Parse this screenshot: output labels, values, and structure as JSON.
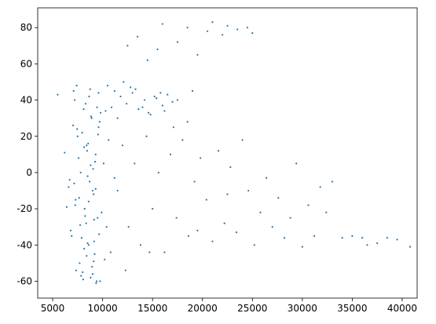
{
  "chart_data": {
    "type": "scatter",
    "color": "#1f77b4",
    "xlim": [
      3500,
      41500
    ],
    "ylim": [
      -69.3,
      90.9
    ],
    "xticks": [
      5000,
      10000,
      15000,
      20000,
      25000,
      30000,
      35000,
      40000
    ],
    "yticks": [
      -60,
      -40,
      -20,
      0,
      20,
      40,
      60,
      80
    ],
    "x": [
      7200,
      8100,
      8900,
      9600,
      7500,
      8400,
      9300,
      10100,
      7800,
      8700,
      9000,
      7300,
      8200,
      9500,
      10400,
      6900,
      8600,
      9200,
      7700,
      8000,
      8800,
      9400,
      7100,
      8300,
      9700,
      10600,
      7600,
      8500,
      9100,
      9900,
      6800,
      8150,
      8950,
      9350,
      7400,
      8650,
      9800,
      7950,
      8450,
      9050,
      6600,
      7250,
      8350,
      9150,
      10200,
      7850,
      8750,
      9450,
      7050,
      8550,
      9250,
      6700,
      7650,
      8250,
      9650,
      10800,
      7350,
      8050,
      8850,
      9550,
      6200,
      5500,
      7150,
      8600,
      9150,
      7900,
      8400,
      9000,
      9600,
      10300,
      7450,
      8150,
      8800,
      9300,
      6400,
      7750,
      8500,
      9100,
      9750,
      11200,
      10500,
      11200,
      11800,
      12400,
      13000,
      13600,
      14200,
      14800,
      15400,
      16000,
      16500,
      17000,
      11500,
      12800,
      14000,
      15200,
      16200,
      17500,
      13300,
      15800,
      19000,
      18500,
      10900,
      12100,
      14600,
      12500,
      13500,
      14500,
      15500,
      16000,
      17500,
      18500,
      19500,
      20500,
      21000,
      22000,
      22500,
      23500,
      24500,
      25000,
      11500,
      12000,
      12600,
      13200,
      13800,
      14400,
      15000,
      15600,
      16200,
      16800,
      17400,
      18000,
      18600,
      19200,
      19800,
      20400,
      21000,
      21600,
      22200,
      22800,
      23400,
      24000,
      24600,
      25200,
      25800,
      26400,
      27000,
      27600,
      28200,
      28800,
      29400,
      30000,
      30600,
      31200,
      31800,
      32400,
      33000,
      34000,
      35000,
      36000,
      36500,
      37500,
      38500,
      39500,
      40800,
      12300,
      14700,
      17100,
      19500,
      22500
    ],
    "y": [
      40,
      35,
      30,
      25,
      20,
      15,
      10,
      5,
      0,
      -5,
      -10,
      -15,
      -20,
      -25,
      -30,
      -35,
      -40,
      -45,
      -50,
      -55,
      -58,
      -60,
      45,
      38,
      28,
      18,
      8,
      -2,
      -12,
      -22,
      -32,
      -42,
      -52,
      -61,
      48,
      42,
      33,
      22,
      12,
      2,
      -8,
      -18,
      -28,
      -38,
      -48,
      -57,
      46,
      36,
      26,
      16,
      6,
      -4,
      -14,
      -24,
      -34,
      -44,
      -54,
      -59,
      31,
      21,
      11,
      43,
      -6,
      -16,
      -26,
      -36,
      -46,
      -56,
      44,
      34,
      24,
      14,
      4,
      -9,
      -19,
      -29,
      -39,
      -49,
      -60,
      -3,
      48,
      45,
      42,
      38,
      44,
      35,
      40,
      32,
      41,
      37,
      43,
      39,
      30,
      47,
      36,
      42,
      34,
      40,
      46,
      44,
      45,
      28,
      36,
      50,
      33,
      70,
      75,
      62,
      68,
      82,
      72,
      80,
      65,
      78,
      83,
      76,
      81,
      79,
      80,
      77,
      -10,
      15,
      -30,
      5,
      -40,
      20,
      -20,
      0,
      -44,
      10,
      -25,
      18,
      -35,
      -5,
      8,
      -15,
      -38,
      12,
      -28,
      3,
      -33,
      18,
      -10,
      -40,
      -22,
      -3,
      -30,
      -14,
      -36,
      -25,
      5,
      -41,
      -18,
      -35,
      -8,
      -22,
      -5,
      -36,
      -35,
      -36,
      -40,
      -39,
      -36,
      -37,
      -41,
      -54,
      -44,
      25,
      -32,
      -12
    ]
  }
}
